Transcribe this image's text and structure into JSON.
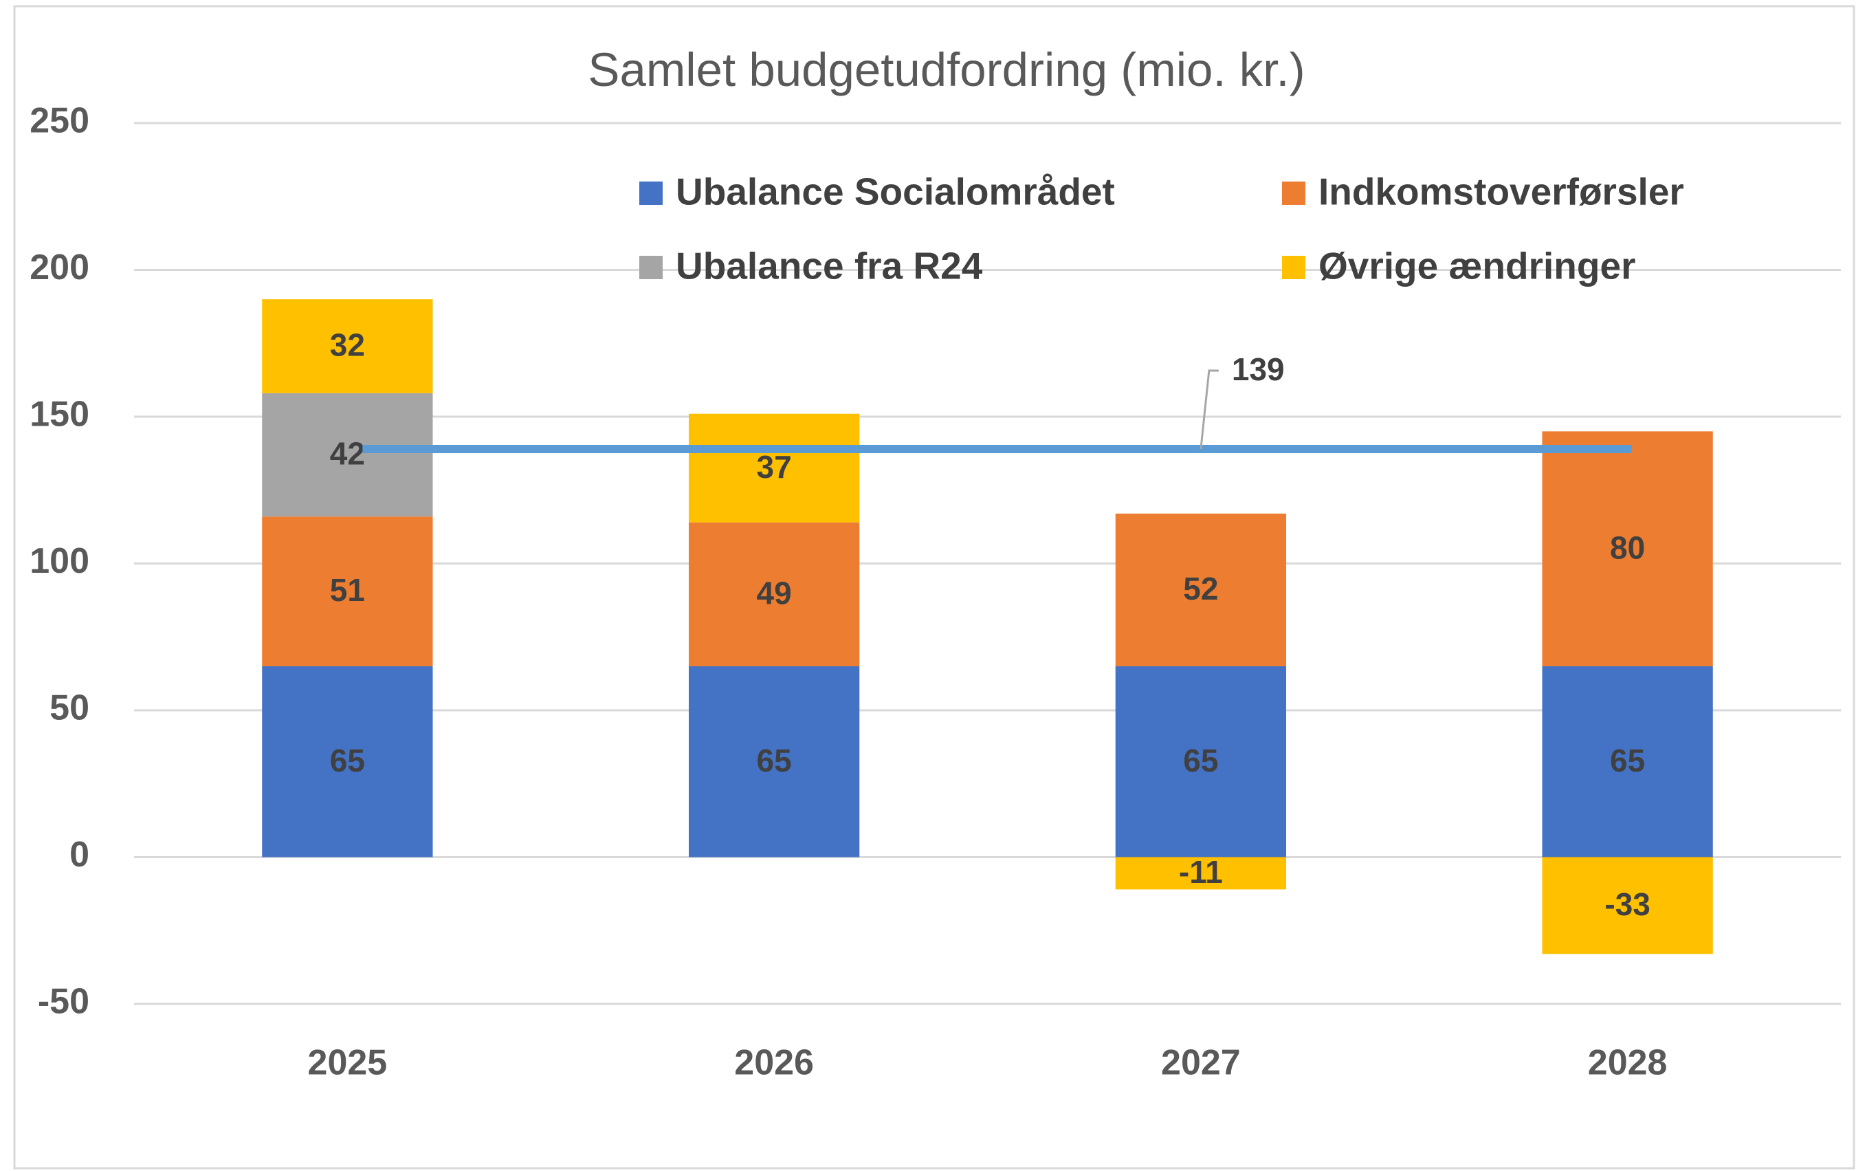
{
  "chart_data": {
    "type": "bar",
    "title": "Samlet budgetudfordring (mio. kr.)",
    "categories": [
      "2025",
      "2026",
      "2027",
      "2028"
    ],
    "stacked": true,
    "series": [
      {
        "name": "Ubalance Socialområdet",
        "color": "#4472c4",
        "values": [
          65,
          65,
          65,
          65
        ]
      },
      {
        "name": "Indkomstoverførsler",
        "color": "#ed7d31",
        "values": [
          51,
          49,
          52,
          80
        ]
      },
      {
        "name": "Ubalance fra R24",
        "color": "#a5a5a5",
        "values": [
          42,
          null,
          null,
          null
        ]
      },
      {
        "name": "Øvrige ændringer",
        "color": "#ffc000",
        "values": [
          32,
          37,
          -11,
          -33
        ]
      },
      {
        "type": "line",
        "color": "#5b9bd5",
        "values": [
          139,
          139,
          139,
          139
        ]
      }
    ],
    "ylim": [
      -50,
      250
    ],
    "yticks": [
      -50,
      0,
      50,
      100,
      150,
      200,
      250
    ],
    "grid": true,
    "legend": "top-right"
  }
}
